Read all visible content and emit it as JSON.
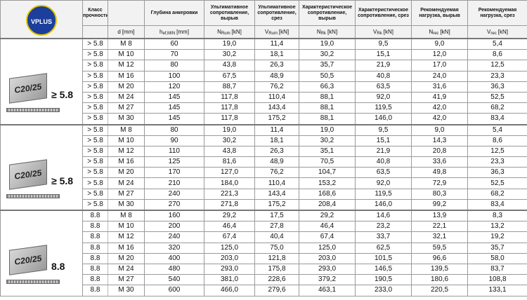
{
  "logo": "VPLUS",
  "columns": [
    {
      "title": "Класс прочности"
    },
    {
      "symbol": "d",
      "unit": "[mm]"
    },
    {
      "title": "Глубина анкеровки",
      "symbol": "h",
      "sub": "ef,MIN",
      "unit": "[mm]"
    },
    {
      "title": "Ультимативное сопротивление, вырыв",
      "symbol": "N",
      "sub": "Rum",
      "unit": "[kN]"
    },
    {
      "title": "Ультимативное сопротивление, срез",
      "symbol": "V",
      "sub": "Rum",
      "unit": "[kN]"
    },
    {
      "title": "Характеристическое сопротивление, вырыв",
      "symbol": "N",
      "sub": "Rk",
      "unit": "[kN]"
    },
    {
      "title": "Характеристическое сопротивление, срез",
      "symbol": "V",
      "sub": "Rk",
      "unit": "[kN]"
    },
    {
      "title": "Рекомендуемая нагрузка, вырыв",
      "symbol": "N",
      "sub": "rec",
      "unit": "[kN]"
    },
    {
      "title": "Рекомендуемая нагрузка, срез",
      "symbol": "V",
      "sub": "rec",
      "unit": "[kN]"
    }
  ],
  "groups": [
    {
      "image_label": "C20/25",
      "grade": "≥ 5.8",
      "rows": [
        [
          "> 5.8",
          "M 8",
          "60",
          "19,0",
          "11,4",
          "19,0",
          "9,5",
          "9,0",
          "5,4"
        ],
        [
          "> 5.8",
          "M 10",
          "70",
          "30,2",
          "18,1",
          "30,2",
          "15,1",
          "12,0",
          "8,6"
        ],
        [
          "> 5.8",
          "M 12",
          "80",
          "43,8",
          "26,3",
          "35,7",
          "21,9",
          "17,0",
          "12,5"
        ],
        [
          "> 5.8",
          "M 16",
          "100",
          "67,5",
          "48,9",
          "50,5",
          "40,8",
          "24,0",
          "23,3"
        ],
        [
          "> 5.8",
          "M 20",
          "120",
          "88,7",
          "76,2",
          "66,3",
          "63,5",
          "31,6",
          "36,3"
        ],
        [
          "> 5.8",
          "M 24",
          "145",
          "117,8",
          "110,4",
          "88,1",
          "92,0",
          "41,9",
          "52,5"
        ],
        [
          "> 5.8",
          "M 27",
          "145",
          "117,8",
          "143,4",
          "88,1",
          "119,5",
          "42,0",
          "68,2"
        ],
        [
          "> 5.8",
          "M 30",
          "145",
          "117,8",
          "175,2",
          "88,1",
          "146,0",
          "42,0",
          "83,4"
        ]
      ]
    },
    {
      "image_label": "C20/25",
      "grade": "≥ 5.8",
      "rows": [
        [
          "> 5.8",
          "M 8",
          "80",
          "19,0",
          "11,4",
          "19,0",
          "9,5",
          "9,0",
          "5,4"
        ],
        [
          "> 5.8",
          "M 10",
          "90",
          "30,2",
          "18,1",
          "30,2",
          "15,1",
          "14,3",
          "8,6"
        ],
        [
          "> 5.8",
          "M 12",
          "110",
          "43,8",
          "26,3",
          "35,1",
          "21,9",
          "20,8",
          "12,5"
        ],
        [
          "> 5.8",
          "M 16",
          "125",
          "81,6",
          "48,9",
          "70,5",
          "40,8",
          "33,6",
          "23,3"
        ],
        [
          "> 5.8",
          "M 20",
          "170",
          "127,0",
          "76,2",
          "104,7",
          "63,5",
          "49,8",
          "36,3"
        ],
        [
          "> 5.8",
          "M 24",
          "210",
          "184,0",
          "110,4",
          "153,2",
          "92,0",
          "72,9",
          "52,5"
        ],
        [
          "> 5.8",
          "M 27",
          "240",
          "221,3",
          "143,4",
          "168,6",
          "119,5",
          "80,3",
          "68,2"
        ],
        [
          "> 5.8",
          "M 30",
          "270",
          "271,8",
          "175,2",
          "208,4",
          "146,0",
          "99,2",
          "83,4"
        ]
      ]
    },
    {
      "image_label": "C20/25",
      "grade": "8.8",
      "rows": [
        [
          "8.8",
          "M 8",
          "160",
          "29,2",
          "17,5",
          "29,2",
          "14,6",
          "13,9",
          "8,3"
        ],
        [
          "8.8",
          "M 10",
          "200",
          "46,4",
          "27,8",
          "46,4",
          "23,2",
          "22,1",
          "13,2"
        ],
        [
          "8.8",
          "M 12",
          "240",
          "67,4",
          "40,4",
          "67,4",
          "33,7",
          "32,1",
          "19,2"
        ],
        [
          "8.8",
          "M 16",
          "320",
          "125,0",
          "75,0",
          "125,0",
          "62,5",
          "59,5",
          "35,7"
        ],
        [
          "8.8",
          "M 20",
          "400",
          "203,0",
          "121,8",
          "203,0",
          "101,5",
          "96,6",
          "58,0"
        ],
        [
          "8.8",
          "M 24",
          "480",
          "293,0",
          "175,8",
          "293,0",
          "146,5",
          "139,5",
          "83,7"
        ],
        [
          "8.8",
          "M 27",
          "540",
          "381,0",
          "228,6",
          "379,2",
          "190,5",
          "180,6",
          "108,8"
        ],
        [
          "8.8",
          "M 30",
          "600",
          "466,0",
          "279,6",
          "463,1",
          "233,0",
          "220,5",
          "133,1"
        ]
      ]
    }
  ]
}
